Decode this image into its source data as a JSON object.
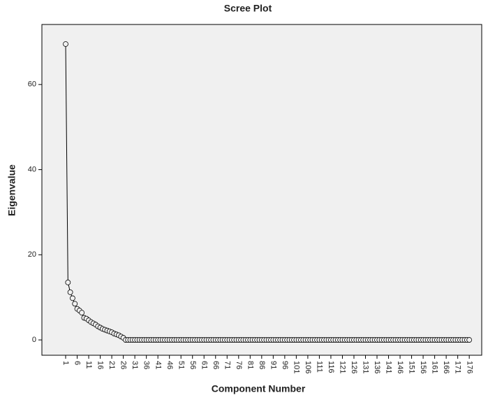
{
  "chart_data": {
    "type": "line",
    "title": "Scree Plot",
    "x_label": "Component Number",
    "y_label": "Eigenvalue",
    "x": [
      1,
      2,
      3,
      4,
      5,
      6,
      7,
      8,
      9,
      10,
      11,
      12,
      13,
      14,
      15,
      16,
      17,
      18,
      19,
      20,
      21,
      22,
      23,
      24,
      25,
      26,
      27,
      28,
      29,
      30,
      31,
      32,
      33,
      34,
      35,
      36,
      37,
      38,
      39,
      40,
      41,
      42,
      43,
      44,
      45,
      46,
      47,
      48,
      49,
      50,
      51,
      52,
      53,
      54,
      55,
      56,
      57,
      58,
      59,
      60,
      61,
      62,
      63,
      64,
      65,
      66,
      67,
      68,
      69,
      70,
      71,
      72,
      73,
      74,
      75,
      76,
      77,
      78,
      79,
      80,
      81,
      82,
      83,
      84,
      85,
      86,
      87,
      88,
      89,
      90,
      91,
      92,
      93,
      94,
      95,
      96,
      97,
      98,
      99,
      100,
      101,
      102,
      103,
      104,
      105,
      106,
      107,
      108,
      109,
      110,
      111,
      112,
      113,
      114,
      115,
      116,
      117,
      118,
      119,
      120,
      121,
      122,
      123,
      124,
      125,
      126,
      127,
      128,
      129,
      130,
      131,
      132,
      133,
      134,
      135,
      136,
      137,
      138,
      139,
      140,
      141,
      142,
      143,
      144,
      145,
      146,
      147,
      148,
      149,
      150,
      151,
      152,
      153,
      154,
      155,
      156,
      157,
      158,
      159,
      160,
      161,
      162,
      163,
      164,
      165,
      166,
      167,
      168,
      169,
      170,
      171,
      172,
      173,
      174,
      175,
      176
    ],
    "series": [
      {
        "name": "Eigenvalue",
        "color": "#000000",
        "values": [
          69.5,
          13.5,
          11.2,
          9.8,
          8.5,
          7.3,
          6.9,
          6.4,
          5.2,
          5.0,
          4.6,
          4.2,
          3.9,
          3.6,
          3.2,
          2.9,
          2.6,
          2.4,
          2.2,
          2.0,
          1.8,
          1.5,
          1.3,
          1.1,
          0.8,
          0.5,
          0,
          0,
          0,
          0,
          0,
          0,
          0,
          0,
          0,
          0,
          0,
          0,
          0,
          0,
          0,
          0,
          0,
          0,
          0,
          0,
          0,
          0,
          0,
          0,
          0,
          0,
          0,
          0,
          0,
          0,
          0,
          0,
          0,
          0,
          0,
          0,
          0,
          0,
          0,
          0,
          0,
          0,
          0,
          0,
          0,
          0,
          0,
          0,
          0,
          0,
          0,
          0,
          0,
          0,
          0,
          0,
          0,
          0,
          0,
          0,
          0,
          0,
          0,
          0,
          0,
          0,
          0,
          0,
          0,
          0,
          0,
          0,
          0,
          0,
          0,
          0,
          0,
          0,
          0,
          0,
          0,
          0,
          0,
          0,
          0,
          0,
          0,
          0,
          0,
          0,
          0,
          0,
          0,
          0,
          0,
          0,
          0,
          0,
          0,
          0,
          0,
          0,
          0,
          0,
          0,
          0,
          0,
          0,
          0,
          0,
          0,
          0,
          0,
          0,
          0,
          0,
          0,
          0,
          0,
          0,
          0,
          0,
          0,
          0,
          0,
          0,
          0,
          0,
          0,
          0,
          0,
          0,
          0,
          0,
          0,
          0,
          0,
          0,
          0,
          0,
          0,
          0,
          0,
          0,
          0,
          0,
          0,
          0,
          0,
          0
        ]
      }
    ],
    "xlim": [
      -9.3,
      181.4
    ],
    "ylim": [
      -3.6,
      74.1
    ],
    "xticks": [
      1,
      6,
      11,
      16,
      21,
      26,
      31,
      36,
      41,
      46,
      51,
      56,
      61,
      66,
      71,
      76,
      81,
      86,
      91,
      96,
      101,
      106,
      111,
      116,
      121,
      126,
      131,
      136,
      141,
      146,
      151,
      156,
      161,
      166,
      171,
      176
    ],
    "yticks": [
      0,
      20,
      40,
      60
    ],
    "background": "#f0f0f0"
  }
}
